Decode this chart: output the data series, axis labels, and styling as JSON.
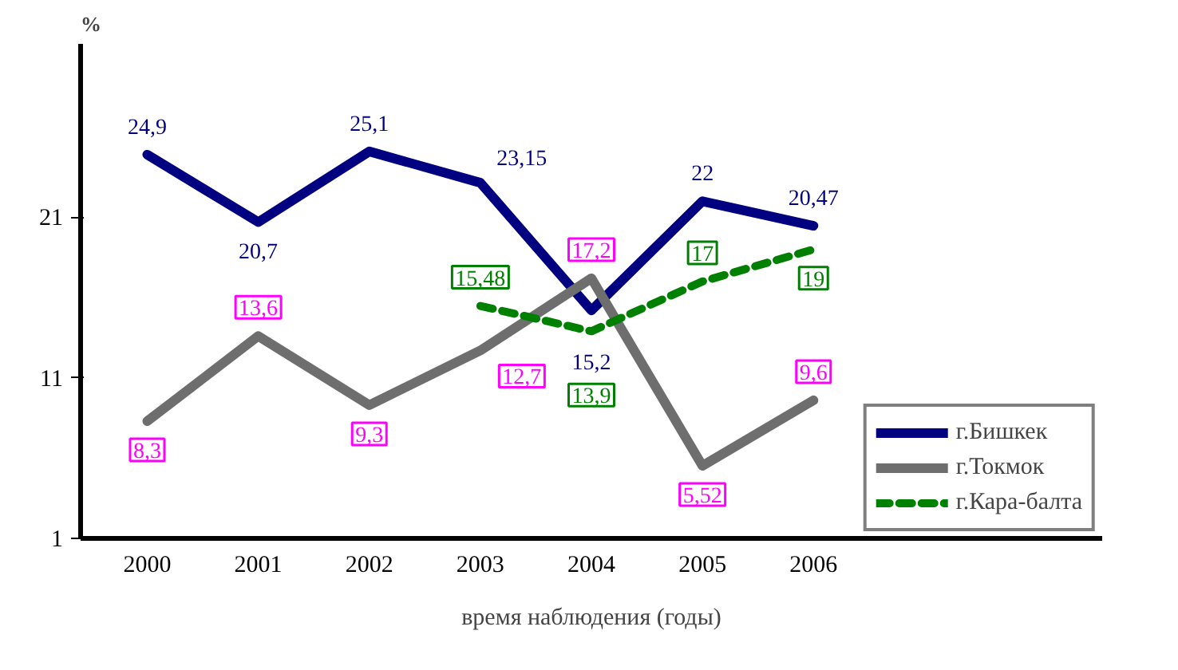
{
  "chart_data": {
    "type": "line",
    "xlabel": "время наблюдения (годы)",
    "ylabel": "%",
    "categories": [
      "2000",
      "2001",
      "2002",
      "2003",
      "2004",
      "2005",
      "2006"
    ],
    "series": [
      {
        "name": "г.Бишкек",
        "color": "#000080",
        "values": [
          24.9,
          20.7,
          25.1,
          23.15,
          15.2,
          22,
          20.47
        ],
        "value_labels": [
          "24,9",
          "20,7",
          "25,1",
          "23,15",
          "15,2",
          "22",
          "20,47"
        ]
      },
      {
        "name": "г.Токмок",
        "color": "#6e6e6e",
        "values": [
          8.3,
          13.6,
          9.3,
          12.7,
          17.2,
          5.52,
          9.6
        ],
        "value_labels": [
          "8,3",
          "13,6",
          "9,3",
          "12,7",
          "17,2",
          "5,52",
          "9,6"
        ]
      },
      {
        "name": "г.Кара-балта",
        "color": "#008000",
        "line_style": "dashed",
        "values": [
          null,
          null,
          null,
          15.48,
          13.9,
          17,
          19
        ],
        "value_labels": [
          null,
          null,
          null,
          "15,48",
          "13,9",
          "17",
          "19"
        ]
      }
    ],
    "ylim": [
      1,
      31.8
    ],
    "yticks": [
      1,
      11,
      21
    ],
    "grid": false,
    "legend": "bottom right",
    "marker": "none"
  }
}
